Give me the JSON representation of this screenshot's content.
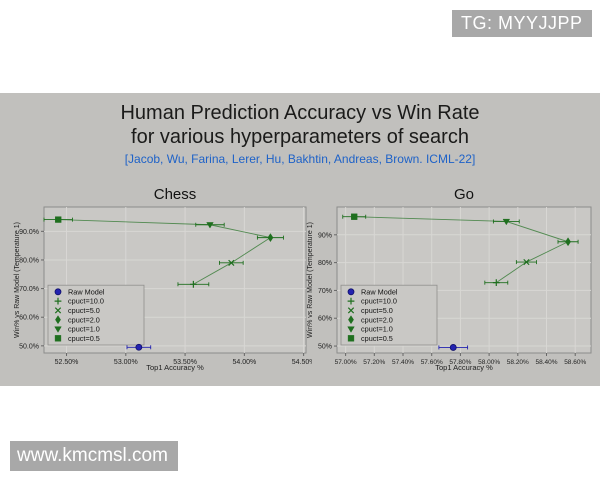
{
  "watermarks": {
    "top_right": "TG: MYYJJPP",
    "bottom_left": "www.kmcmsl.com"
  },
  "slide": {
    "title_line1": "Human Prediction Accuracy vs Win Rate",
    "title_line2": "for various hyperparameters of search",
    "citation": "[Jacob, Wu, Farina, Lerer, Hu, Bakhtin, Andreas, Brown. ICML-22]"
  },
  "colors": {
    "slide_bg": "#c1c0bd",
    "plot_bg": "#c9c8c5",
    "plot_border": "#8c8c8a",
    "grid": "#d8d7d4",
    "series_green": "#1f6f1f",
    "raw_blue": "#2323b0",
    "raw_blue_edge": "#10106a",
    "citation_blue": "#1e62c8",
    "watermark_bg": "#a8a8a8"
  },
  "chart_data": [
    {
      "type": "scatter",
      "title": "Chess",
      "xlabel": "Top1 Accuracy %",
      "ylabel": "Win% vs Raw Model (Temperature 1)",
      "xlim": [
        52.31,
        54.52
      ],
      "ylim": [
        47.5,
        98.5
      ],
      "grid": true,
      "legend_position": "lower-left",
      "tick_font": 7,
      "x_ticks": [
        52.5,
        53.0,
        53.5,
        54.0,
        54.5
      ],
      "x_tick_labels": [
        "52.50%",
        "53.00%",
        "53.50%",
        "54.00%",
        "54.50%"
      ],
      "y_ticks": [
        50,
        60,
        70,
        80,
        90
      ],
      "y_tick_labels": [
        "50.0%",
        "60.0%",
        "70.0%",
        "80.0%",
        "90.0%"
      ],
      "series": [
        {
          "name": "Raw Model",
          "marker": "circle",
          "color": "blue",
          "points": [
            {
              "x": 53.11,
              "y": 49.5,
              "xerr": 0.1
            }
          ]
        },
        {
          "name": "cpuct=10.0",
          "marker": "plus",
          "color": "green",
          "points": [
            {
              "x": 53.57,
              "y": 71.5,
              "xerr": 0.13
            }
          ]
        },
        {
          "name": "cpuct=5.0",
          "marker": "x",
          "color": "green",
          "points": [
            {
              "x": 53.89,
              "y": 79.0,
              "xerr": 0.1
            }
          ]
        },
        {
          "name": "cpuct=2.0",
          "marker": "diamond",
          "color": "green",
          "points": [
            {
              "x": 54.22,
              "y": 87.8,
              "xerr": 0.11
            }
          ]
        },
        {
          "name": "cpuct=1.0",
          "marker": "triangle-down",
          "color": "green",
          "points": [
            {
              "x": 53.71,
              "y": 92.3,
              "xerr": 0.12
            }
          ]
        },
        {
          "name": "cpuct=0.5",
          "marker": "square",
          "color": "green",
          "points": [
            {
              "x": 52.43,
              "y": 94.1,
              "xerr": 0.12
            }
          ]
        }
      ],
      "connect": [
        "cpuct=0.5",
        "cpuct=1.0",
        "cpuct=2.0",
        "cpuct=5.0",
        "cpuct=10.0"
      ]
    },
    {
      "type": "scatter",
      "title": "Go",
      "xlabel": "Top1 Accuracy %",
      "ylabel": "Win% vs Raw Model (Temperature 1)",
      "xlim": [
        56.94,
        58.71
      ],
      "ylim": [
        47.5,
        100.0
      ],
      "grid": true,
      "legend_position": "lower-left",
      "tick_font": 6.5,
      "x_ticks": [
        57.0,
        57.2,
        57.4,
        57.6,
        57.8,
        58.0,
        58.2,
        58.4,
        58.6
      ],
      "x_tick_labels": [
        "57.00%",
        "57.20%",
        "57.40%",
        "57.60%",
        "57.80%",
        "58.00%",
        "58.20%",
        "58.40%",
        "58.60%"
      ],
      "y_ticks": [
        50,
        60,
        70,
        80,
        90
      ],
      "y_tick_labels": [
        "50%",
        "60%",
        "70%",
        "80%",
        "90%"
      ],
      "series": [
        {
          "name": "Raw Model",
          "marker": "circle",
          "color": "blue",
          "points": [
            {
              "x": 57.75,
              "y": 49.5,
              "xerr": 0.1
            }
          ]
        },
        {
          "name": "cpuct=10.0",
          "marker": "plus",
          "color": "green",
          "points": [
            {
              "x": 58.05,
              "y": 72.8,
              "xerr": 0.08
            }
          ]
        },
        {
          "name": "cpuct=5.0",
          "marker": "x",
          "color": "green",
          "points": [
            {
              "x": 58.26,
              "y": 80.2,
              "xerr": 0.07
            }
          ]
        },
        {
          "name": "cpuct=2.0",
          "marker": "diamond",
          "color": "green",
          "points": [
            {
              "x": 58.55,
              "y": 87.5,
              "xerr": 0.07
            }
          ]
        },
        {
          "name": "cpuct=1.0",
          "marker": "triangle-down",
          "color": "green",
          "points": [
            {
              "x": 58.12,
              "y": 94.8,
              "xerr": 0.09
            }
          ]
        },
        {
          "name": "cpuct=0.5",
          "marker": "square",
          "color": "green",
          "points": [
            {
              "x": 57.06,
              "y": 96.5,
              "xerr": 0.08
            }
          ]
        }
      ],
      "connect": [
        "cpuct=0.5",
        "cpuct=1.0",
        "cpuct=2.0",
        "cpuct=5.0",
        "cpuct=10.0"
      ]
    }
  ]
}
